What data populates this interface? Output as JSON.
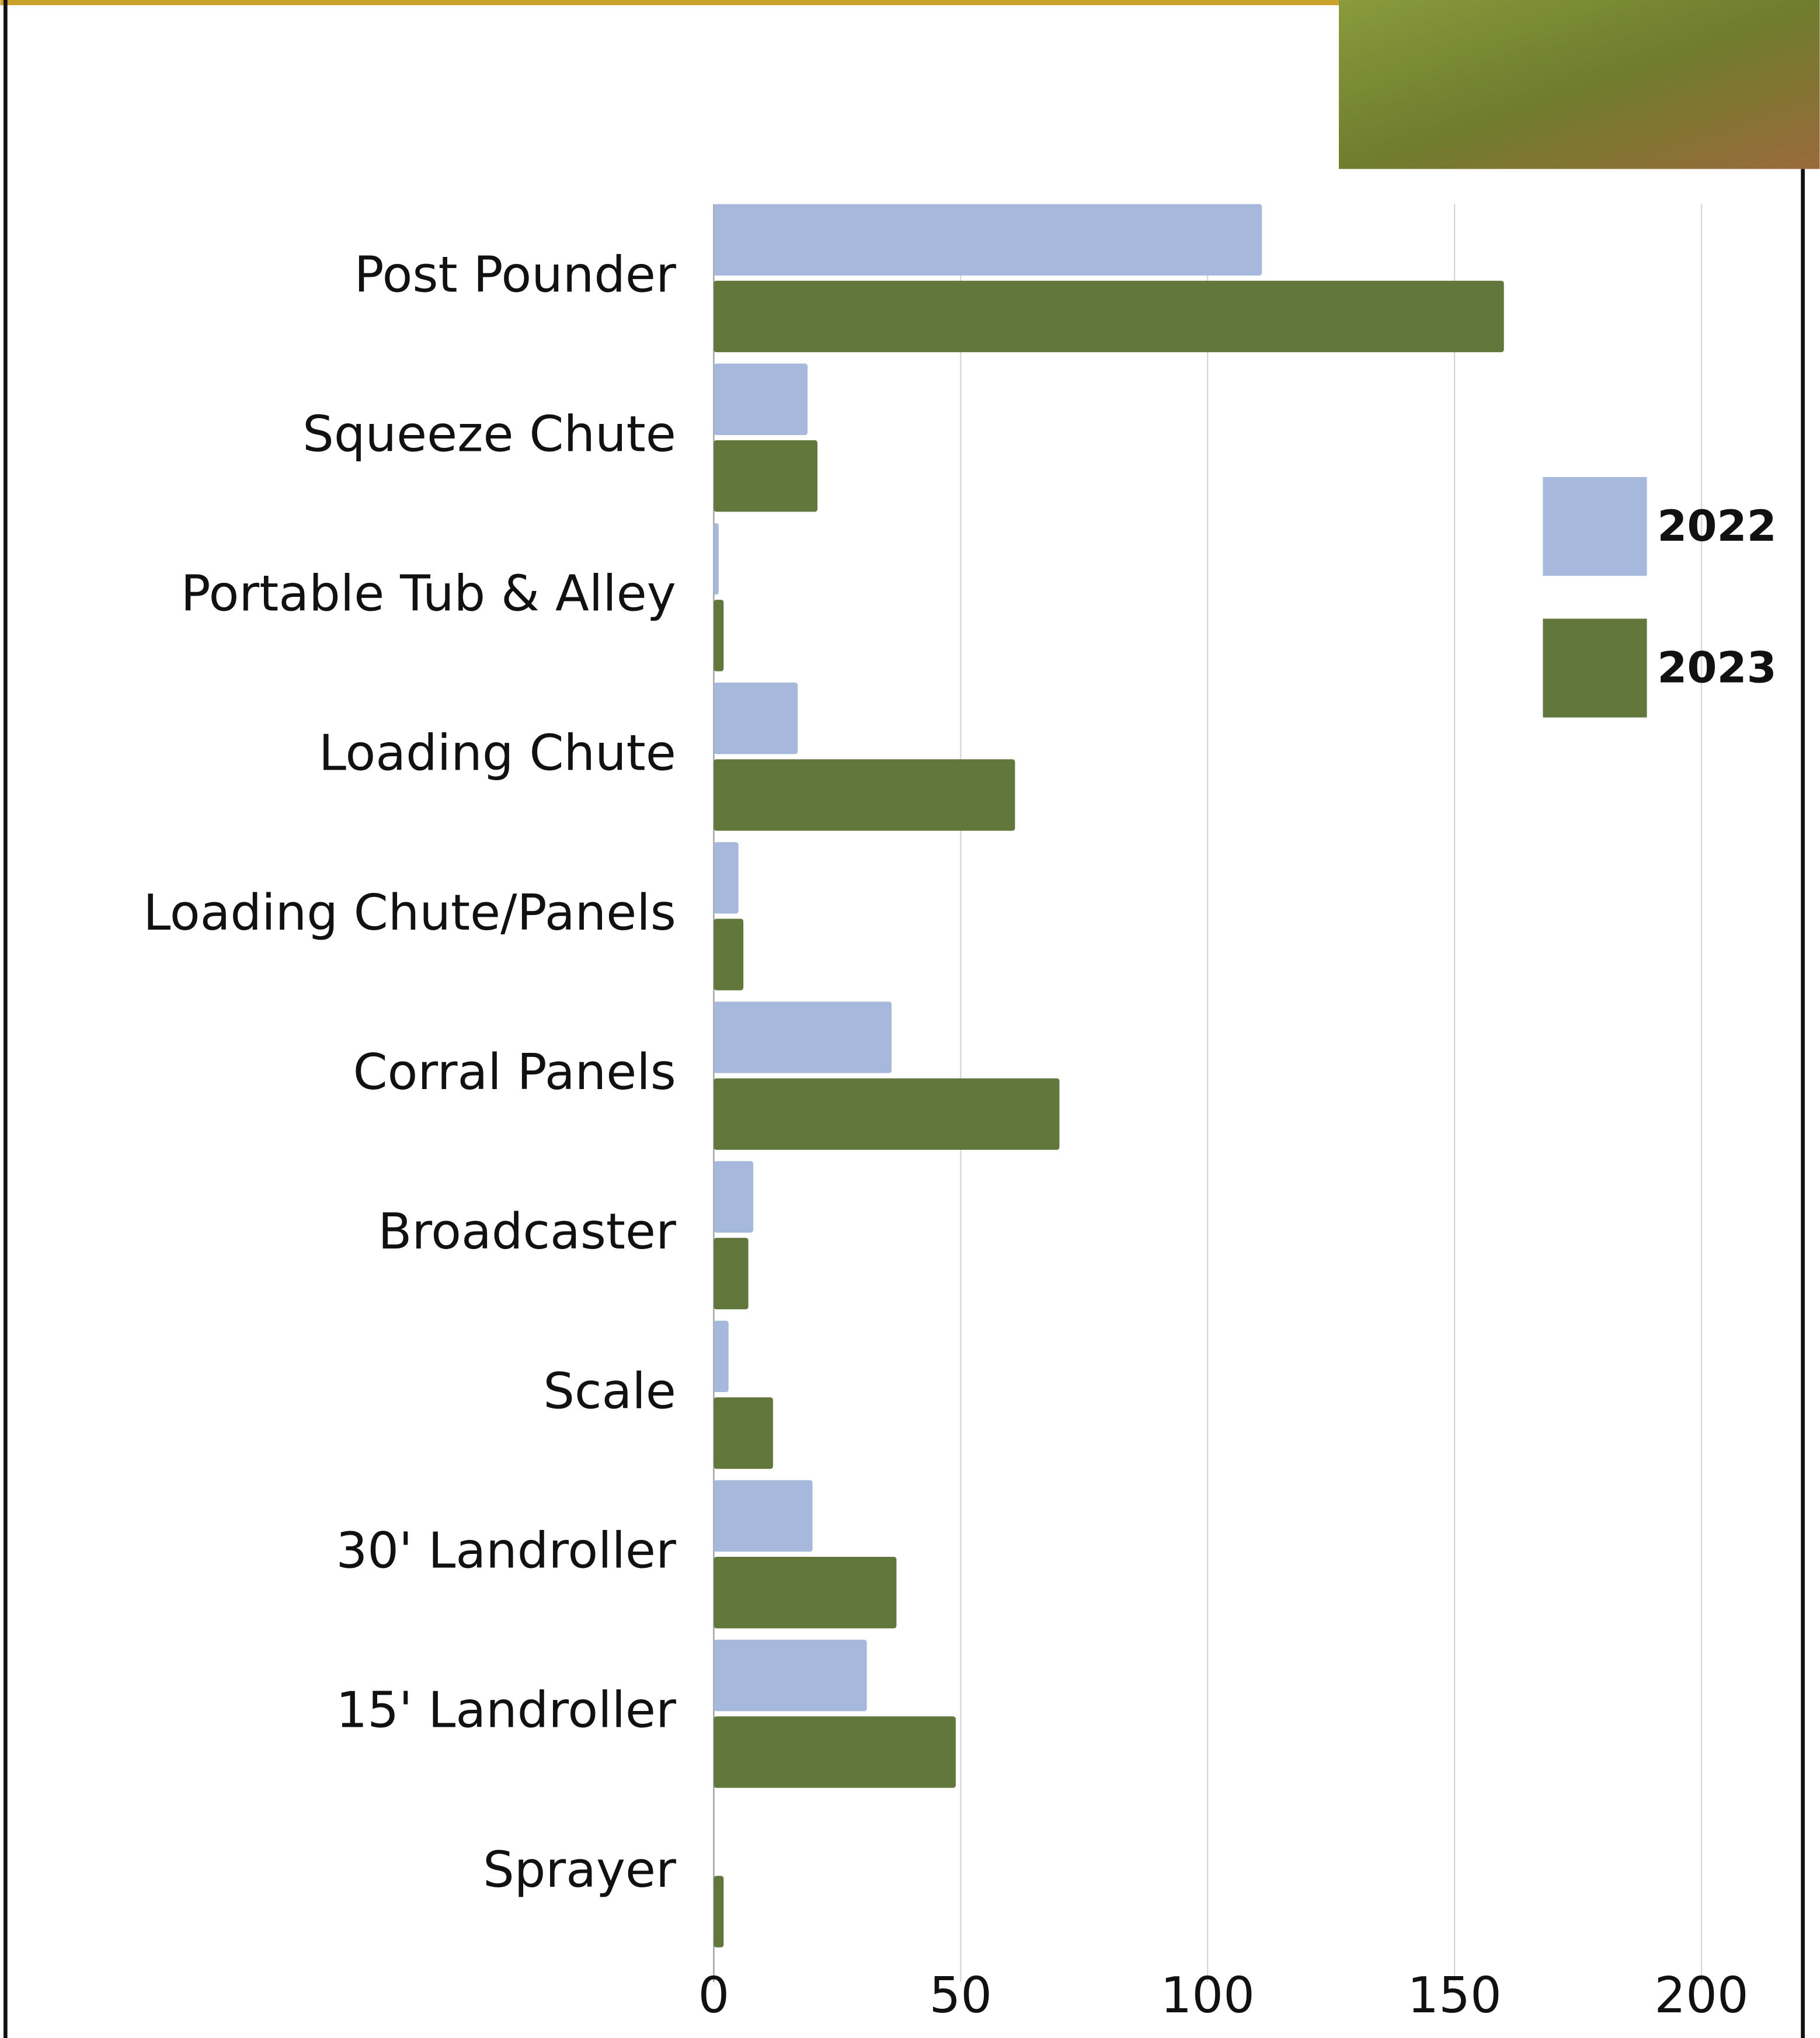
{
  "chart_data": {
    "type": "barh",
    "categories": [
      "Post Pounder",
      "Squeeze Chute",
      "Portable Tub & Alley",
      "Loading Chute",
      "Loading Chute/Panels",
      "Corral Panels",
      "Broadcaster",
      "Scale",
      "30' Landroller",
      "15' Landroller",
      "Sprayer"
    ],
    "series": [
      {
        "name": "2022",
        "color": "#a6b8db",
        "values": [
          111,
          19,
          1,
          17,
          5,
          36,
          8,
          3,
          20,
          31,
          0
        ]
      },
      {
        "name": "2023",
        "color": "#61773c",
        "values": [
          160,
          21,
          2,
          61,
          6,
          70,
          7,
          12,
          37,
          49,
          2
        ]
      }
    ],
    "xlim": [
      0,
      200
    ],
    "xticks": [
      0,
      50,
      100,
      150,
      200
    ],
    "grid": true,
    "legend": "right"
  }
}
